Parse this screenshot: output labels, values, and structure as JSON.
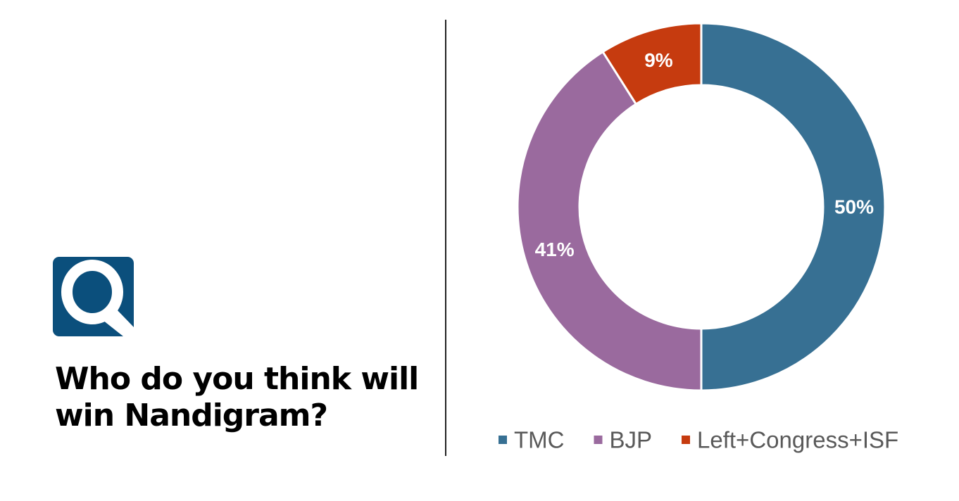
{
  "logo": {
    "letter": "Q",
    "color": "#0b4f7c"
  },
  "question": {
    "line1": "Who do you think will",
    "line2": "win Nandigram?"
  },
  "chart_data": {
    "type": "pie",
    "variant": "donut",
    "title": "Who do you think will win Nandigram?",
    "categories": [
      "TMC",
      "BJP",
      "Left+Congress+ISF"
    ],
    "values": [
      50,
      41,
      9
    ],
    "labels": [
      "50%",
      "41%",
      "9%"
    ],
    "colors": [
      "#377093",
      "#9a6a9e",
      "#c63b0f"
    ],
    "legend_position": "bottom"
  }
}
